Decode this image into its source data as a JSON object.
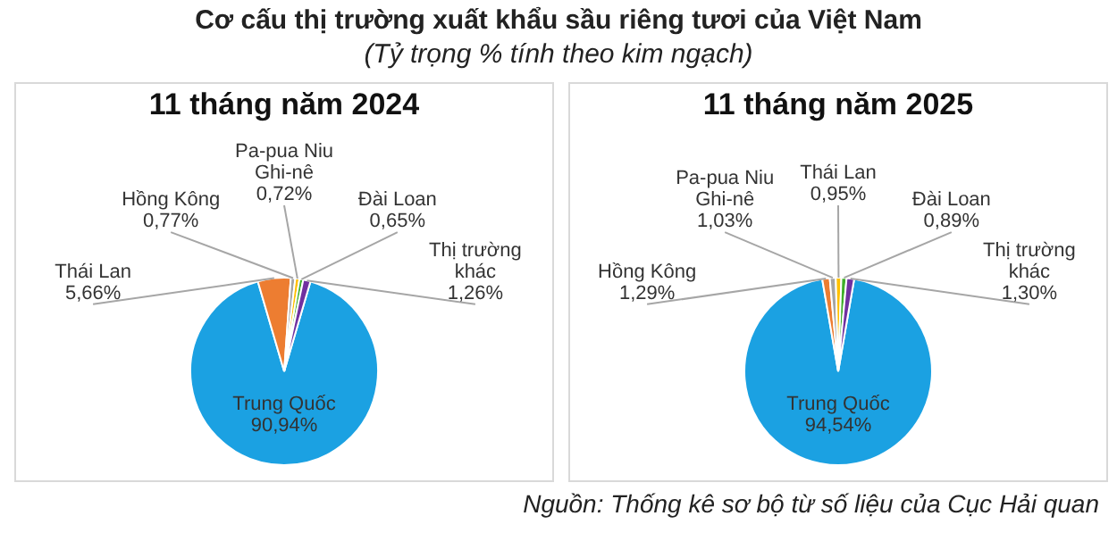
{
  "chart_data": [
    {
      "type": "other",
      "title": "Cơ cấu thị trường xuất khẩu sầu riêng tươi của Việt Nam",
      "subtitle": "(Tỷ trọng % tính theo kim ngạch)",
      "annotations": [
        "Nguồn: Thống kê sơ bộ từ số liệu của Cục Hải quan"
      ]
    },
    {
      "type": "pie",
      "title": "11 tháng năm 2024",
      "categories": [
        "Trung Quốc",
        "Thái Lan",
        "Hồng Kông",
        "Pa-pua Niu Ghi-nê",
        "Đài Loan",
        "Thị trường khác"
      ],
      "values": [
        90.94,
        5.66,
        0.77,
        0.72,
        0.65,
        1.26
      ],
      "value_labels": [
        "90,94%",
        "5,66%",
        "0,77%",
        "0,72%",
        "0,65%",
        "1,26%"
      ],
      "colors": [
        "#1ba1e2",
        "#ed7d31",
        "#a5a5a5",
        "#ffc000",
        "#3fae2a",
        "#7030a0"
      ],
      "legend": false
    },
    {
      "type": "pie",
      "title": "11 tháng năm 2025",
      "categories": [
        "Trung Quốc",
        "Hồng Kông",
        "Pa-pua Niu Ghi-nê",
        "Thái Lan",
        "Đài Loan",
        "Thị trường khác"
      ],
      "values": [
        94.54,
        1.29,
        1.03,
        0.95,
        0.89,
        1.3
      ],
      "value_labels": [
        "94,54%",
        "1,29%",
        "1,03%",
        "0,95%",
        "0,89%",
        "1,30%"
      ],
      "colors": [
        "#1ba1e2",
        "#ed7d31",
        "#a5a5a5",
        "#ffc000",
        "#3fae2a",
        "#7030a0"
      ],
      "legend": false
    }
  ]
}
